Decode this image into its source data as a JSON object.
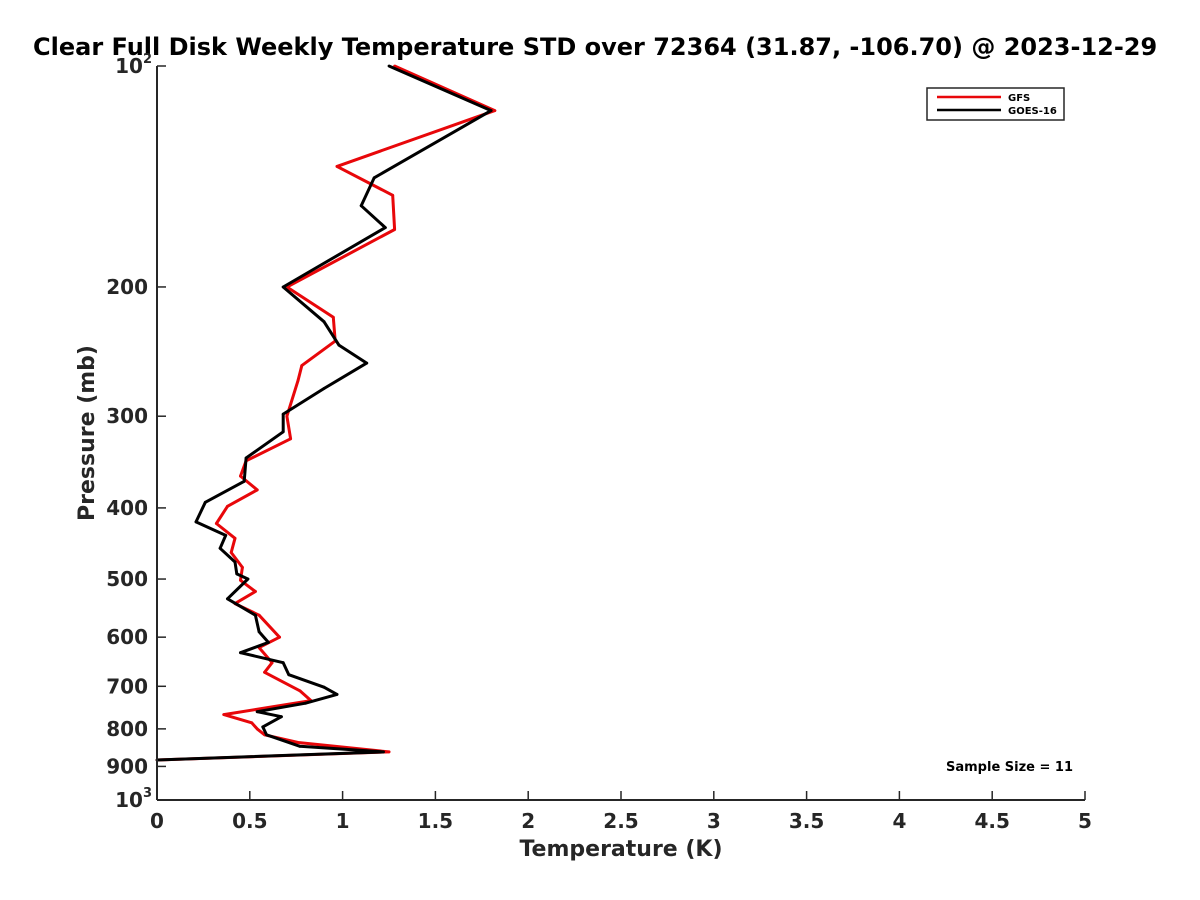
{
  "chart_data": {
    "type": "line",
    "title": "Clear Full Disk Weekly Temperature STD over 72364 (31.87, -106.70) @ 2023-12-29",
    "xlabel": "Temperature (K)",
    "ylabel": "Pressure (mb)",
    "xlim": [
      0,
      5
    ],
    "ylim": [
      100,
      1000
    ],
    "y_scale": "log",
    "y_reversed": true,
    "grid": false,
    "legend_position": "top-right",
    "x_ticks": [
      {
        "value": 0,
        "label": "0"
      },
      {
        "value": 0.5,
        "label": "0.5"
      },
      {
        "value": 1,
        "label": "1"
      },
      {
        "value": 1.5,
        "label": "1.5"
      },
      {
        "value": 2,
        "label": "2"
      },
      {
        "value": 2.5,
        "label": "2.5"
      },
      {
        "value": 3,
        "label": "3"
      },
      {
        "value": 3.5,
        "label": "3.5"
      },
      {
        "value": 4,
        "label": "4"
      },
      {
        "value": 4.5,
        "label": "4.5"
      },
      {
        "value": 5,
        "label": "5"
      }
    ],
    "y_ticks": [
      {
        "value": 100,
        "label": "10",
        "sup": "2"
      },
      {
        "value": 200,
        "label": "200"
      },
      {
        "value": 300,
        "label": "300"
      },
      {
        "value": 400,
        "label": "400"
      },
      {
        "value": 500,
        "label": "500"
      },
      {
        "value": 600,
        "label": "600"
      },
      {
        "value": 700,
        "label": "700"
      },
      {
        "value": 800,
        "label": "800"
      },
      {
        "value": 900,
        "label": "900"
      },
      {
        "value": 1000,
        "label": "10",
        "sup": "3"
      }
    ],
    "series": [
      {
        "name": "GFS",
        "color": "#e8070a",
        "points": [
          [
            1.28,
            100
          ],
          [
            1.82,
            115
          ],
          [
            0.97,
            137
          ],
          [
            1.27,
            150
          ],
          [
            1.28,
            167
          ],
          [
            0.7,
            200
          ],
          [
            0.95,
            220
          ],
          [
            0.96,
            237
          ],
          [
            0.78,
            256
          ],
          [
            0.76,
            268
          ],
          [
            0.7,
            300
          ],
          [
            0.72,
            322
          ],
          [
            0.48,
            345
          ],
          [
            0.45,
            362
          ],
          [
            0.54,
            378
          ],
          [
            0.38,
            398
          ],
          [
            0.32,
            420
          ],
          [
            0.42,
            440
          ],
          [
            0.4,
            460
          ],
          [
            0.46,
            482
          ],
          [
            0.45,
            502
          ],
          [
            0.53,
            520
          ],
          [
            0.42,
            540
          ],
          [
            0.55,
            560
          ],
          [
            0.66,
            600
          ],
          [
            0.55,
            620
          ],
          [
            0.62,
            650
          ],
          [
            0.58,
            670
          ],
          [
            0.77,
            710
          ],
          [
            0.83,
            732
          ],
          [
            0.36,
            765
          ],
          [
            0.51,
            785
          ],
          [
            0.54,
            800
          ],
          [
            0.58,
            815
          ],
          [
            0.76,
            835
          ],
          [
            1.25,
            860
          ],
          [
            0.0,
            882
          ]
        ]
      },
      {
        "name": "GOES-16",
        "color": "#000000",
        "points": [
          [
            1.25,
            100
          ],
          [
            1.8,
            115
          ],
          [
            1.17,
            142
          ],
          [
            1.1,
            155
          ],
          [
            1.23,
            166
          ],
          [
            0.68,
            200
          ],
          [
            0.9,
            223
          ],
          [
            0.98,
            240
          ],
          [
            1.13,
            254
          ],
          [
            0.9,
            275
          ],
          [
            0.68,
            298
          ],
          [
            0.68,
            315
          ],
          [
            0.48,
            342
          ],
          [
            0.47,
            368
          ],
          [
            0.26,
            393
          ],
          [
            0.21,
            418
          ],
          [
            0.37,
            436
          ],
          [
            0.34,
            454
          ],
          [
            0.42,
            474
          ],
          [
            0.43,
            492
          ],
          [
            0.49,
            500
          ],
          [
            0.38,
            532
          ],
          [
            0.53,
            560
          ],
          [
            0.55,
            590
          ],
          [
            0.6,
            610
          ],
          [
            0.45,
            630
          ],
          [
            0.68,
            650
          ],
          [
            0.71,
            675
          ],
          [
            0.9,
            702
          ],
          [
            0.97,
            718
          ],
          [
            0.8,
            738
          ],
          [
            0.54,
            758
          ],
          [
            0.67,
            770
          ],
          [
            0.57,
            795
          ],
          [
            0.59,
            815
          ],
          [
            0.77,
            845
          ],
          [
            1.22,
            860
          ],
          [
            0.0,
            882
          ]
        ]
      }
    ],
    "legend": [
      {
        "label": "GFS",
        "color": "#e8070a"
      },
      {
        "label": "GOES-16",
        "color": "#000000"
      }
    ],
    "annotations": [
      {
        "text": "Sample Size = 11",
        "position": "bottom-right"
      }
    ]
  }
}
